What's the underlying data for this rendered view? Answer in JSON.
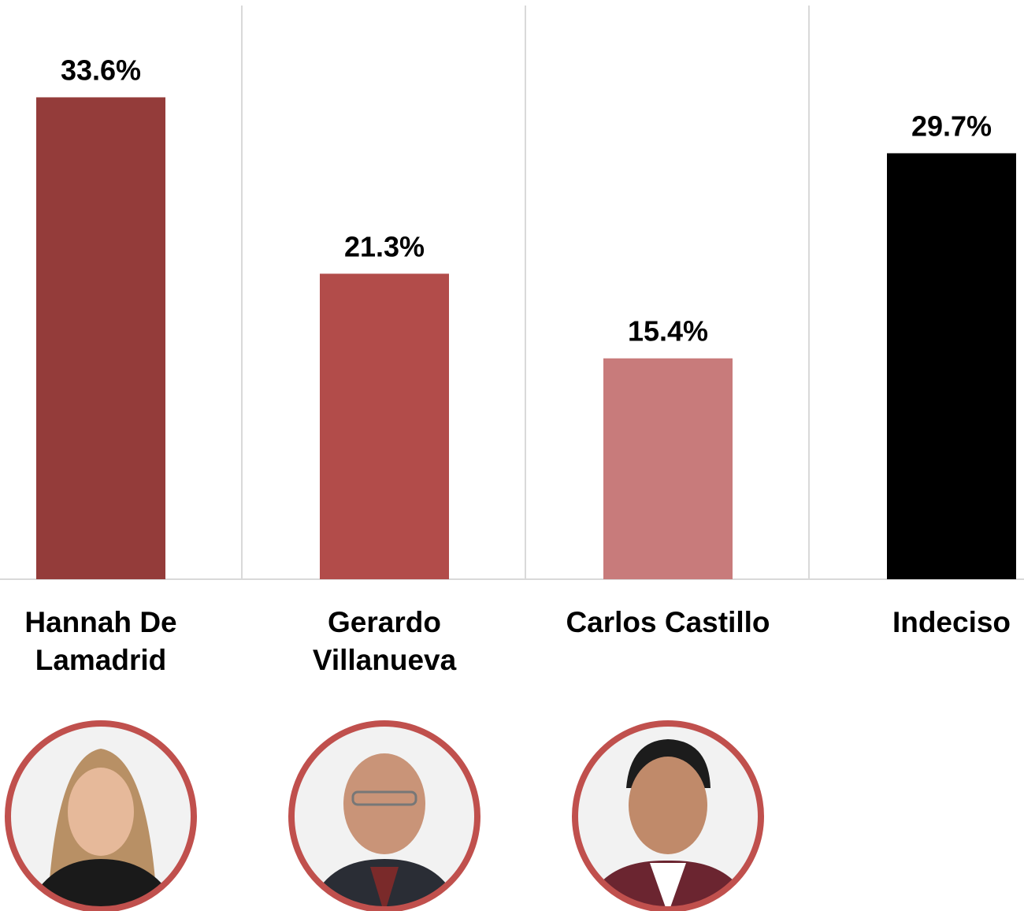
{
  "chart_data": {
    "type": "bar",
    "categories": [
      "Hannah De Lamadrid",
      "Gerardo Villanueva",
      "Carlos Castillo",
      "Indeciso"
    ],
    "values": [
      33.6,
      21.3,
      15.4,
      29.7
    ],
    "value_labels": [
      "33.6%",
      "21.3%",
      "15.4%",
      "29.7%"
    ],
    "colors": [
      "#943c3a",
      "#b24c4a",
      "#c87b7b",
      "#000000"
    ],
    "ylim": [
      0,
      40
    ]
  }
}
